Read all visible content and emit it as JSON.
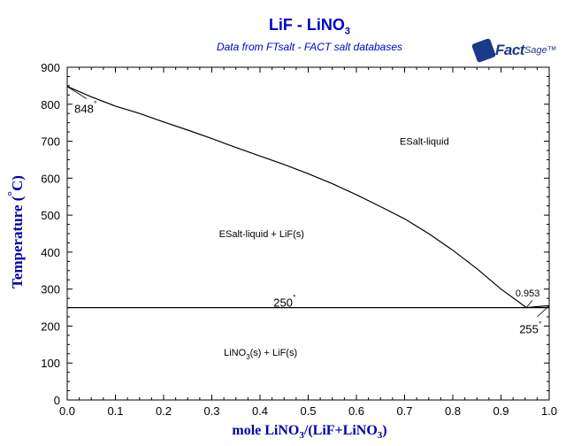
{
  "chart_data": {
    "type": "line",
    "title": "LiF - LiNO3",
    "subtitle": "Data from FTsalt - FACT salt databases",
    "logo": "FactSage",
    "xlabel": "mole LiNO3/(LiF+LiNO3)",
    "ylabel": "Temperature (°C)",
    "xlim": [
      0,
      1
    ],
    "ylim": [
      0,
      900
    ],
    "xticks": [
      "0.0",
      "0.1",
      "0.2",
      "0.3",
      "0.4",
      "0.5",
      "0.6",
      "0.7",
      "0.8",
      "0.9",
      "1.0"
    ],
    "yticks": [
      "0",
      "100",
      "200",
      "300",
      "400",
      "500",
      "600",
      "700",
      "800",
      "900"
    ],
    "grid": false,
    "series": [
      {
        "role": "liquidus",
        "x": [
          0,
          0.05,
          0.1,
          0.15,
          0.2,
          0.25,
          0.3,
          0.35,
          0.4,
          0.45,
          0.5,
          0.55,
          0.6,
          0.65,
          0.7,
          0.75,
          0.8,
          0.85,
          0.9,
          0.953
        ],
        "y": [
          848,
          820,
          795,
          775,
          752,
          730,
          707,
          683,
          660,
          637,
          612,
          585,
          555,
          523,
          490,
          450,
          405,
          355,
          300,
          250
        ]
      },
      {
        "role": "eutectic",
        "x": [
          0,
          1
        ],
        "y": [
          250,
          250
        ]
      },
      {
        "role": "LiNO3-melting",
        "x": [
          0.953,
          0.97,
          1
        ],
        "y": [
          250,
          252,
          255
        ]
      }
    ],
    "labels": [
      {
        "text": "848",
        "sup": "°",
        "x": 0.0,
        "y": 848
      },
      {
        "text": "ESalt-liquid",
        "x": 0.75,
        "y": 690
      },
      {
        "text": "ESalt-liquid + LiF(s)",
        "x": 0.35,
        "y": 440
      },
      {
        "text": "0.953",
        "x": 0.953,
        "y": 280
      },
      {
        "text": "250",
        "sup": "°",
        "x": 0.45,
        "y": 250
      },
      {
        "text": "255",
        "sup": "°",
        "x": 0.98,
        "y": 180
      },
      {
        "text": "LiNO3(s) + LiF(s)",
        "x": 0.36,
        "y": 120
      }
    ]
  }
}
